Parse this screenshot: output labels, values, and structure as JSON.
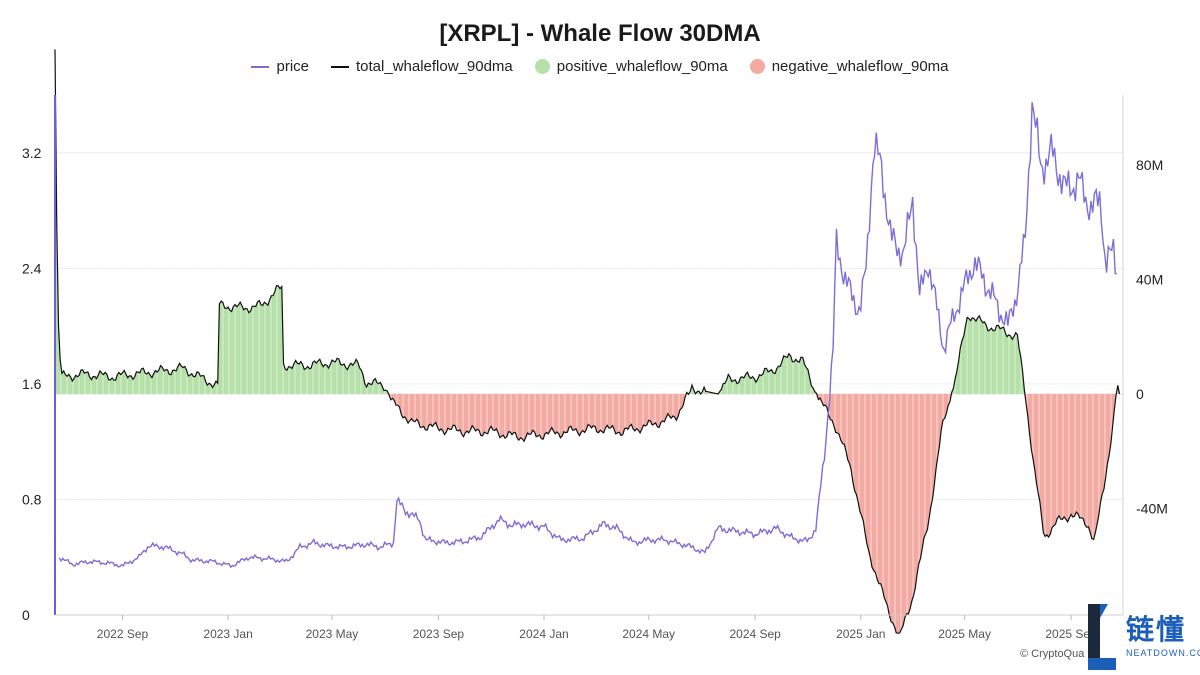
{
  "chart_data": {
    "type": "line",
    "title": "[XRPL] - Whale Flow 30DMA",
    "legend_position": "top-center",
    "colors": {
      "price": "#7b6fd6",
      "total": "#111111",
      "positive": "#b5e0a8",
      "negative": "#f2aaa3",
      "grid": "#ececec",
      "left_axis": "#6b5fe0"
    },
    "series": [
      {
        "key": "price",
        "name": "price",
        "style": "line"
      },
      {
        "key": "total",
        "name": "total_whaleflow_90dma",
        "style": "line"
      },
      {
        "key": "positive",
        "name": "positive_whaleflow_90ma",
        "style": "area"
      },
      {
        "key": "negative",
        "name": "negative_whaleflow_90ma",
        "style": "area"
      }
    ],
    "x_ticks": [
      "2022 Sep",
      "2023 Jan",
      "2023 May",
      "2023 Sep",
      "2024 Jan",
      "2024 May",
      "2024 Sep",
      "2025 Jan",
      "2025 May",
      "2025 Sep"
    ],
    "x_range": [
      "2022-06-15",
      "2025-10-31"
    ],
    "y_left": {
      "range": [
        0,
        3.6
      ],
      "ticks": [
        0,
        0.8,
        1.6,
        2.4,
        3.2
      ],
      "tick_labels": [
        "0",
        "0.8",
        "1.6",
        "2.4",
        "3.2"
      ]
    },
    "y_right": {
      "range": [
        -100,
        100
      ],
      "ticks": [
        -40,
        0,
        40,
        80
      ],
      "tick_labels": [
        "-40M",
        "0",
        "40M",
        "80M"
      ],
      "unit": "M"
    },
    "price_data": [
      [
        "2022-06-20",
        0.4
      ],
      [
        "2022-07-05",
        0.35
      ],
      [
        "2022-07-25",
        0.37
      ],
      [
        "2022-08-15",
        0.36
      ],
      [
        "2022-09-01",
        0.34
      ],
      [
        "2022-09-20",
        0.4
      ],
      [
        "2022-10-01",
        0.48
      ],
      [
        "2022-10-20",
        0.47
      ],
      [
        "2022-11-10",
        0.42
      ],
      [
        "2022-11-20",
        0.38
      ],
      [
        "2022-12-15",
        0.37
      ],
      [
        "2023-01-05",
        0.34
      ],
      [
        "2023-01-25",
        0.4
      ],
      [
        "2023-02-15",
        0.39
      ],
      [
        "2023-03-10",
        0.37
      ],
      [
        "2023-03-25",
        0.47
      ],
      [
        "2023-04-10",
        0.5
      ],
      [
        "2023-04-25",
        0.48
      ],
      [
        "2023-05-15",
        0.47
      ],
      [
        "2023-06-10",
        0.49
      ],
      [
        "2023-06-25",
        0.47
      ],
      [
        "2023-07-12",
        0.5
      ],
      [
        "2023-07-14",
        0.8
      ],
      [
        "2023-07-25",
        0.72
      ],
      [
        "2023-08-10",
        0.66
      ],
      [
        "2023-08-17",
        0.52
      ],
      [
        "2023-09-10",
        0.5
      ],
      [
        "2023-10-01",
        0.51
      ],
      [
        "2023-10-20",
        0.54
      ],
      [
        "2023-11-10",
        0.66
      ],
      [
        "2023-11-25",
        0.62
      ],
      [
        "2023-12-10",
        0.63
      ],
      [
        "2024-01-01",
        0.61
      ],
      [
        "2024-01-20",
        0.52
      ],
      [
        "2024-02-15",
        0.53
      ],
      [
        "2024-03-10",
        0.63
      ],
      [
        "2024-03-25",
        0.6
      ],
      [
        "2024-04-13",
        0.5
      ],
      [
        "2024-05-01",
        0.52
      ],
      [
        "2024-05-20",
        0.52
      ],
      [
        "2024-06-15",
        0.48
      ],
      [
        "2024-07-05",
        0.43
      ],
      [
        "2024-07-20",
        0.6
      ],
      [
        "2024-08-10",
        0.58
      ],
      [
        "2024-09-01",
        0.56
      ],
      [
        "2024-09-25",
        0.6
      ],
      [
        "2024-10-15",
        0.53
      ],
      [
        "2024-11-01",
        0.51
      ],
      [
        "2024-11-10",
        0.6
      ],
      [
        "2024-11-20",
        1.1
      ],
      [
        "2024-12-01",
        1.9
      ],
      [
        "2024-12-03",
        2.6
      ],
      [
        "2024-12-15",
        2.3
      ],
      [
        "2024-12-31",
        2.1
      ],
      [
        "2025-01-07",
        2.4
      ],
      [
        "2025-01-16",
        3.25
      ],
      [
        "2025-01-25",
        3.1
      ],
      [
        "2025-02-05",
        2.6
      ],
      [
        "2025-02-20",
        2.5
      ],
      [
        "2025-03-02",
        2.9
      ],
      [
        "2025-03-10",
        2.2
      ],
      [
        "2025-03-20",
        2.45
      ],
      [
        "2025-04-07",
        1.85
      ],
      [
        "2025-04-20",
        2.1
      ],
      [
        "2025-05-12",
        2.45
      ],
      [
        "2025-05-25",
        2.3
      ],
      [
        "2025-06-20",
        2.0
      ],
      [
        "2025-07-01",
        2.25
      ],
      [
        "2025-07-10",
        2.6
      ],
      [
        "2025-07-18",
        3.55
      ],
      [
        "2025-07-28",
        3.1
      ],
      [
        "2025-08-10",
        3.2
      ],
      [
        "2025-08-25",
        2.95
      ],
      [
        "2025-09-10",
        3.0
      ],
      [
        "2025-09-25",
        2.8
      ],
      [
        "2025-10-05",
        2.9
      ],
      [
        "2025-10-11",
        2.4
      ],
      [
        "2025-10-20",
        2.55
      ],
      [
        "2025-10-25",
        2.35
      ]
    ],
    "whaleflow_data": [
      [
        "2022-06-15",
        122
      ],
      [
        "2022-06-18",
        30
      ],
      [
        "2022-06-22",
        6
      ],
      [
        "2022-07-20",
        7
      ],
      [
        "2022-08-20",
        6
      ],
      [
        "2022-09-15",
        7
      ],
      [
        "2022-10-15",
        8
      ],
      [
        "2022-11-10",
        9
      ],
      [
        "2022-12-05",
        5
      ],
      [
        "2022-12-20",
        3
      ],
      [
        "2022-12-22",
        31
      ],
      [
        "2023-01-20",
        30
      ],
      [
        "2023-02-10",
        31
      ],
      [
        "2023-02-25",
        36
      ],
      [
        "2023-03-05",
        37
      ],
      [
        "2023-03-06",
        10
      ],
      [
        "2023-04-01",
        10
      ],
      [
        "2023-05-01",
        11
      ],
      [
        "2023-06-01",
        10
      ],
      [
        "2023-06-10",
        4
      ],
      [
        "2023-07-01",
        3
      ],
      [
        "2023-07-10",
        -3
      ],
      [
        "2023-08-01",
        -10
      ],
      [
        "2023-09-01",
        -12
      ],
      [
        "2023-10-01",
        -13
      ],
      [
        "2023-11-01",
        -13
      ],
      [
        "2023-12-01",
        -15
      ],
      [
        "2024-01-01",
        -14
      ],
      [
        "2024-02-01",
        -13
      ],
      [
        "2024-03-01",
        -12
      ],
      [
        "2024-04-01",
        -13
      ],
      [
        "2024-05-01",
        -11
      ],
      [
        "2024-06-01",
        -8
      ],
      [
        "2024-06-20",
        2
      ],
      [
        "2024-07-20",
        0
      ],
      [
        "2024-08-01",
        5
      ],
      [
        "2024-09-01",
        6
      ],
      [
        "2024-09-20",
        8
      ],
      [
        "2024-10-10",
        13
      ],
      [
        "2024-10-25",
        12
      ],
      [
        "2024-11-08",
        2
      ],
      [
        "2024-11-16",
        -3
      ],
      [
        "2024-12-01",
        -10
      ],
      [
        "2024-12-20",
        -25
      ],
      [
        "2025-01-10",
        -55
      ],
      [
        "2025-02-01",
        -75
      ],
      [
        "2025-02-15",
        -85
      ],
      [
        "2025-03-01",
        -72
      ],
      [
        "2025-03-20",
        -45
      ],
      [
        "2025-04-05",
        -12
      ],
      [
        "2025-04-20",
        5
      ],
      [
        "2025-05-05",
        28
      ],
      [
        "2025-05-25",
        24
      ],
      [
        "2025-06-15",
        22
      ],
      [
        "2025-07-01",
        20
      ],
      [
        "2025-07-10",
        0
      ],
      [
        "2025-07-20",
        -25
      ],
      [
        "2025-08-01",
        -50
      ],
      [
        "2025-08-15",
        -45
      ],
      [
        "2025-09-01",
        -42
      ],
      [
        "2025-09-20",
        -45
      ],
      [
        "2025-09-28",
        -52
      ],
      [
        "2025-10-10",
        -30
      ],
      [
        "2025-10-15",
        -20
      ],
      [
        "2025-10-20",
        -10
      ],
      [
        "2025-10-24",
        3
      ],
      [
        "2025-10-27",
        0
      ]
    ]
  },
  "credit": "© CryptoQua",
  "logo": {
    "text": "链懂",
    "subtext": "NEATDOWN.COM",
    "colors": {
      "dark": "#1a2a3a",
      "blue": "#1c5fb8"
    }
  }
}
